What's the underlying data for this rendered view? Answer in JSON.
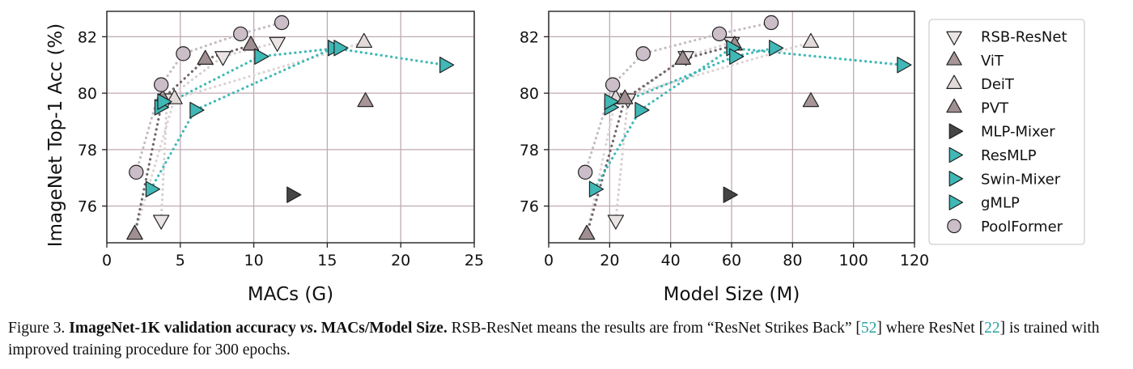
{
  "chart_data": [
    {
      "type": "scatter",
      "xlabel": "MACs (G)",
      "ylabel": "ImageNet Top-1 Acc (%)",
      "xlim": [
        0,
        25
      ],
      "ylim": [
        74.7,
        82.9
      ],
      "xticks": [
        0,
        5,
        10,
        15,
        20,
        25
      ],
      "yticks": [
        76,
        78,
        80,
        82
      ],
      "grid": true,
      "series": [
        {
          "name": "RSB-ResNet",
          "x": [
            3.7,
            4.1,
            7.9,
            11.6
          ],
          "y": [
            75.5,
            79.8,
            81.3,
            81.8
          ]
        },
        {
          "name": "ViT",
          "x": [
            17.6
          ],
          "y": [
            79.7
          ]
        },
        {
          "name": "DeiT",
          "x": [
            1.9,
            4.6,
            17.5
          ],
          "y": [
            75.0,
            79.8,
            81.8
          ]
        },
        {
          "name": "PVT",
          "x": [
            1.9,
            3.8,
            6.7,
            9.8
          ],
          "y": [
            75.0,
            79.8,
            81.2,
            81.7
          ]
        },
        {
          "name": "MLP-Mixer",
          "x": [
            12.6
          ],
          "y": [
            76.4
          ]
        },
        {
          "name": "ResMLP",
          "x": [
            3.0,
            6.0,
            15.4,
            23.0
          ],
          "y": [
            76.6,
            79.4,
            81.6,
            81.0
          ]
        },
        {
          "name": "Swin-Mixer",
          "x": [
            3.6,
            10.4,
            15.8
          ],
          "y": [
            79.5,
            81.3,
            81.6
          ]
        },
        {
          "name": "gMLP",
          "x": [
            3.8
          ],
          "y": [
            79.7
          ]
        },
        {
          "name": "PoolFormer",
          "x": [
            2.0,
            3.7,
            5.2,
            9.1,
            11.9
          ],
          "y": [
            77.2,
            80.3,
            81.4,
            82.1,
            82.5
          ]
        }
      ]
    },
    {
      "type": "scatter",
      "xlabel": "Model Size (M)",
      "ylabel": "",
      "xlim": [
        0,
        120
      ],
      "ylim": [
        74.7,
        82.9
      ],
      "xticks": [
        0,
        20,
        40,
        60,
        80,
        100,
        120
      ],
      "yticks": [
        76,
        78,
        80,
        82
      ],
      "grid": true,
      "series": [
        {
          "name": "RSB-ResNet",
          "x": [
            22,
            26,
            45,
            60
          ],
          "y": [
            75.5,
            79.8,
            81.3,
            81.8
          ]
        },
        {
          "name": "ViT",
          "x": [
            86
          ],
          "y": [
            79.7
          ]
        },
        {
          "name": "DeiT",
          "x": [
            12.5,
            22,
            86
          ],
          "y": [
            75.0,
            79.8,
            81.8
          ]
        },
        {
          "name": "PVT",
          "x": [
            12.5,
            25,
            44,
            61
          ],
          "y": [
            75.0,
            79.8,
            81.2,
            81.7
          ]
        },
        {
          "name": "MLP-Mixer",
          "x": [
            59
          ],
          "y": [
            76.4
          ]
        },
        {
          "name": "ResMLP",
          "x": [
            15,
            30,
            60,
            116
          ],
          "y": [
            76.6,
            79.4,
            81.6,
            81.0
          ]
        },
        {
          "name": "Swin-Mixer",
          "x": [
            20,
            61,
            74
          ],
          "y": [
            79.5,
            81.3,
            81.6
          ]
        },
        {
          "name": "gMLP",
          "x": [
            20
          ],
          "y": [
            79.7
          ]
        },
        {
          "name": "PoolFormer",
          "x": [
            12,
            21,
            31,
            56,
            73
          ],
          "y": [
            77.2,
            80.3,
            81.4,
            82.1,
            82.5
          ]
        }
      ]
    }
  ],
  "styles": [
    {
      "name": "RSB-ResNet",
      "marker": "triangle-down",
      "fill": "#eae4e4",
      "line": "#d9cfcf"
    },
    {
      "name": "ViT",
      "marker": "triangle-up",
      "fill": "#a89598",
      "line": null
    },
    {
      "name": "DeiT",
      "marker": "triangle-up",
      "fill": "#e3dada",
      "line": "#ddd3d3"
    },
    {
      "name": "PVT",
      "marker": "triangle-up",
      "fill": "#a08f92",
      "line": "#70656a"
    },
    {
      "name": "MLP-Mixer",
      "marker": "triangle-right",
      "fill": "#454545",
      "line": null
    },
    {
      "name": "ResMLP",
      "marker": "triangle-right",
      "fill": "#3fb8b6",
      "line": "#3fb8b6"
    },
    {
      "name": "Swin-Mixer",
      "marker": "triangle-right",
      "fill": "#3fb8b6",
      "line": "#3fb8b6"
    },
    {
      "name": "gMLP",
      "marker": "triangle-right",
      "fill": "#3fb8b6",
      "line": null
    },
    {
      "name": "PoolFormer",
      "marker": "circle",
      "fill": "#cbbec8",
      "line": "#c4bbc3"
    }
  ],
  "legend": {
    "placement": "right",
    "entries": [
      "RSB-ResNet",
      "ViT",
      "DeiT",
      "PVT",
      "MLP-Mixer",
      "ResMLP",
      "Swin-Mixer",
      "gMLP",
      "PoolFormer"
    ]
  },
  "colors": {
    "grid": "#bfaab2",
    "axis": "#222222",
    "marker_edge": "#222222",
    "reference": "#2aa3a0"
  },
  "caption": {
    "prefix": "Figure 3. ",
    "bold_title": "ImageNet-1K validation accuracy ",
    "bold_vs": "vs",
    "bold_tail": ". MACs/Model Size.",
    "text1": " RSB-ResNet means the results are from “ResNet Strikes Back” [",
    "ref1": "52",
    "text2": "] where ResNet [",
    "ref2": "22",
    "text3": "] is trained with improved training procedure for 300 epochs."
  }
}
